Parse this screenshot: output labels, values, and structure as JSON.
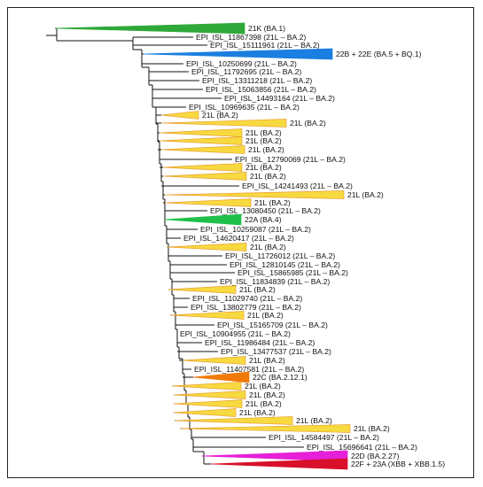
{
  "tree": {
    "labels": [
      "21K (BA.1)",
      "EPI_ISL_11867398 (21L – BA.2)",
      "EPI_ISL_15111961 (21L – BA.2)",
      "22B + 22E (BA.5 + BQ.1)",
      "EPI_ISL_10250699 (21L – BA.2)",
      "EPI_ISL_11792695 (21L – BA.2)",
      "EPI_ISL_13311218 (21L – BA.2)",
      "EPI_ISL_15063856 (21L – BA.2)",
      "EPI_ISL_14493164 (21L – BA.2)",
      "EPI_ISL_10969635 (21L – BA.2)",
      "21L (BA.2)",
      "21L (BA.2)",
      "21L (BA.2)",
      "21L (BA.2)",
      "21L (BA.2)",
      "EPI_ISL_12790069 (21L – BA.2)",
      "21L (BA.2)",
      "21L (BA.2)",
      "EPI_ISL_14241493 (21L – BA.2)",
      "21L (BA.2)",
      "21L (BA.2)",
      "EPI_ISL_13080450 (21L – BA.2)",
      "22A (BA.4)",
      "EPI_ISL_10259087 (21L – BA.2)",
      "EPI_ISL_14620417 (21L – BA.2)",
      "21L (BA.2)",
      "EPI_ISL_11726012 (21L – BA.2)",
      "EPI_ISL_12810145 (21L – BA.2)",
      "EPI_ISL_15865985 (21L – BA.2)",
      "EPI_ISL_11834839 (21L – BA.2)",
      "21L (BA.2)",
      "EPI_ISL_11029740 (21L – BA.2)",
      "EPI_ISL_13802779 (21L – BA.2)",
      "21L (BA.2)",
      "EPI_ISL_15165709 (21L – BA.2)",
      "EPI_ISL_10904955 (21L – BA.2)",
      "EPI_ISL_11986484 (21L – BA.2)",
      "EPI_ISL_13477537 (21L – BA.2)",
      "21L (BA.2)",
      "EPI_ISL_11407581 (21L – BA.2)",
      "22C (BA.2.12.1)",
      "21L (BA.2)",
      "21L (BA.2)",
      "21L (BA.2)",
      "21L (BA.2)",
      "21L (BA.2)",
      "21L (BA.2)",
      "EPI_ISL_14584497 (21L – BA.2)",
      "EPI_ISL_15696641 (21L – BA.2)",
      "22D (BA.2.27)",
      "22F + 23A (XBB + XBB.1.5)"
    ],
    "clade_colors": {
      "BA.1": "#2fa83a",
      "BA.5_BQ.1": "#1a7fe0",
      "BA.4": "#1fc04a",
      "BA.2": "#f7d940",
      "BA.2.12.1": "#f07a0a",
      "BA.2.27": "#e61fd8",
      "XBB": "#d8102a"
    }
  }
}
